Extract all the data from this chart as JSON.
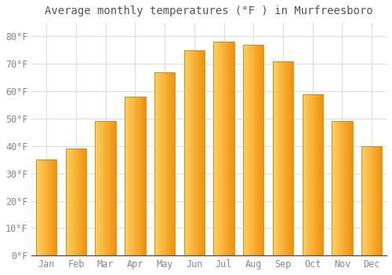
{
  "title": "Average monthly temperatures (°F ) in Murfreesboro",
  "months": [
    "Jan",
    "Feb",
    "Mar",
    "Apr",
    "May",
    "Jun",
    "Jul",
    "Aug",
    "Sep",
    "Oct",
    "Nov",
    "Dec"
  ],
  "values": [
    35,
    39,
    49,
    58,
    67,
    75,
    78,
    77,
    71,
    59,
    49,
    40
  ],
  "bar_color_left": "#FFD060",
  "bar_color_right": "#F0900A",
  "bar_edge_color": "#CC8800",
  "ylim": [
    0,
    85
  ],
  "yticks": [
    0,
    10,
    20,
    30,
    40,
    50,
    60,
    70,
    80
  ],
  "ytick_labels": [
    "0°F",
    "10°F",
    "20°F",
    "30°F",
    "40°F",
    "50°F",
    "60°F",
    "70°F",
    "80°F"
  ],
  "background_color": "#FFFFFF",
  "grid_color": "#DDDDDD",
  "title_fontsize": 10,
  "tick_fontsize": 8.5,
  "font_family": "monospace",
  "bar_width": 0.7
}
